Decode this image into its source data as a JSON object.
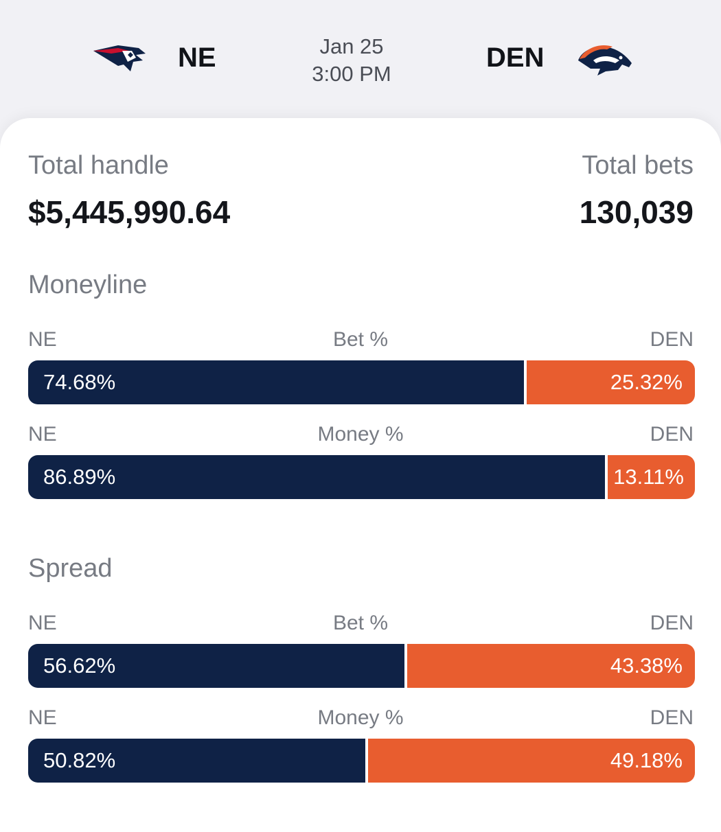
{
  "game": {
    "home_team": "NE",
    "away_team": "DEN",
    "date": "Jan 25",
    "time": "3:00 PM",
    "home_logo_icon": "patriots-logo-icon",
    "away_logo_icon": "broncos-logo-icon"
  },
  "totals": {
    "handle_label": "Total handle",
    "handle_value": "$5,445,990.64",
    "bets_label": "Total bets",
    "bets_value": "130,039"
  },
  "colors": {
    "ne": "#0f2246",
    "den": "#e85d2f"
  },
  "moneyline": {
    "title": "Moneyline",
    "bet": {
      "left_team": "NE",
      "label": "Bet %",
      "right_team": "DEN",
      "ne_pct": 74.68,
      "den_pct": 25.32,
      "ne_text": "74.68%",
      "den_text": "25.32%"
    },
    "money": {
      "left_team": "NE",
      "label": "Money %",
      "right_team": "DEN",
      "ne_pct": 86.89,
      "den_pct": 13.11,
      "ne_text": "86.89%",
      "den_text": "13.11%"
    }
  },
  "spread": {
    "title": "Spread",
    "bet": {
      "left_team": "NE",
      "label": "Bet %",
      "right_team": "DEN",
      "ne_pct": 56.62,
      "den_pct": 43.38,
      "ne_text": "56.62%",
      "den_text": "43.38%"
    },
    "money": {
      "left_team": "NE",
      "label": "Money %",
      "right_team": "DEN",
      "ne_pct": 50.82,
      "den_pct": 49.18,
      "ne_text": "50.82%",
      "den_text": "49.18%"
    }
  }
}
